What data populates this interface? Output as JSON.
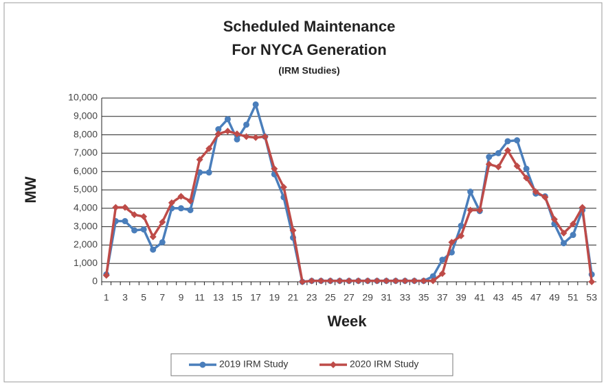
{
  "chart_data": {
    "type": "line",
    "title": [
      "Scheduled Maintenance",
      "For NYCA Generation"
    ],
    "subtitle": "(IRM Studies)",
    "x_label": "Week",
    "y_label": "MW",
    "categories": [
      1,
      null,
      3,
      null,
      5,
      null,
      7,
      null,
      9,
      null,
      11,
      null,
      13,
      null,
      15,
      null,
      17,
      null,
      19,
      null,
      21,
      null,
      23,
      null,
      25,
      null,
      27,
      null,
      29,
      null,
      31,
      null,
      33,
      null,
      35,
      null,
      37,
      null,
      39,
      null,
      41,
      null,
      43,
      null,
      45,
      null,
      47,
      null,
      49,
      null,
      51,
      null,
      53
    ],
    "series": [
      {
        "name": "2019 IRM Study",
        "color": "#4a7ebb",
        "marker": "circle",
        "values": [
          400,
          3300,
          3300,
          2800,
          2850,
          1750,
          2150,
          4000,
          4000,
          3900,
          5950,
          5950,
          8300,
          8850,
          7750,
          8550,
          9650,
          7900,
          5850,
          4600,
          2400,
          0,
          50,
          50,
          50,
          50,
          50,
          50,
          50,
          50,
          50,
          50,
          50,
          50,
          50,
          300,
          1200,
          1600,
          3050,
          4900,
          3850,
          6800,
          7000,
          7650,
          7700,
          6150,
          4800,
          4650,
          3150,
          2100,
          2550,
          3900,
          400
        ]
      },
      {
        "name": "2020 IRM Study",
        "color": "#be4b48",
        "marker": "diamond",
        "values": [
          350,
          4050,
          4050,
          3650,
          3550,
          2450,
          3250,
          4300,
          4650,
          4400,
          6650,
          7250,
          8050,
          8200,
          8050,
          7900,
          7850,
          7900,
          6150,
          5150,
          2800,
          0,
          50,
          50,
          50,
          50,
          50,
          50,
          50,
          50,
          50,
          50,
          50,
          50,
          50,
          50,
          450,
          2150,
          2500,
          3900,
          3900,
          6400,
          6250,
          7150,
          6300,
          5650,
          4900,
          4600,
          3400,
          2650,
          3150,
          4050,
          0
        ]
      }
    ],
    "ylim": [
      0,
      10000
    ],
    "yticks": [
      0,
      {
        "value": 1000,
        "label": "1,000"
      },
      {
        "value": 2000,
        "label": "2,000"
      },
      {
        "value": 3000,
        "label": "3,000"
      },
      {
        "value": 4000,
        "label": "4,000"
      },
      {
        "value": 5000,
        "label": "5,000"
      },
      {
        "value": 6000,
        "label": "6,000"
      },
      {
        "value": 7000,
        "label": "7,000"
      },
      {
        "value": 8000,
        "label": "8,000"
      },
      {
        "value": 9000,
        "label": "9,000"
      },
      {
        "value": 10000,
        "label": "10,000"
      }
    ],
    "grid": true,
    "legend": "bottom"
  }
}
